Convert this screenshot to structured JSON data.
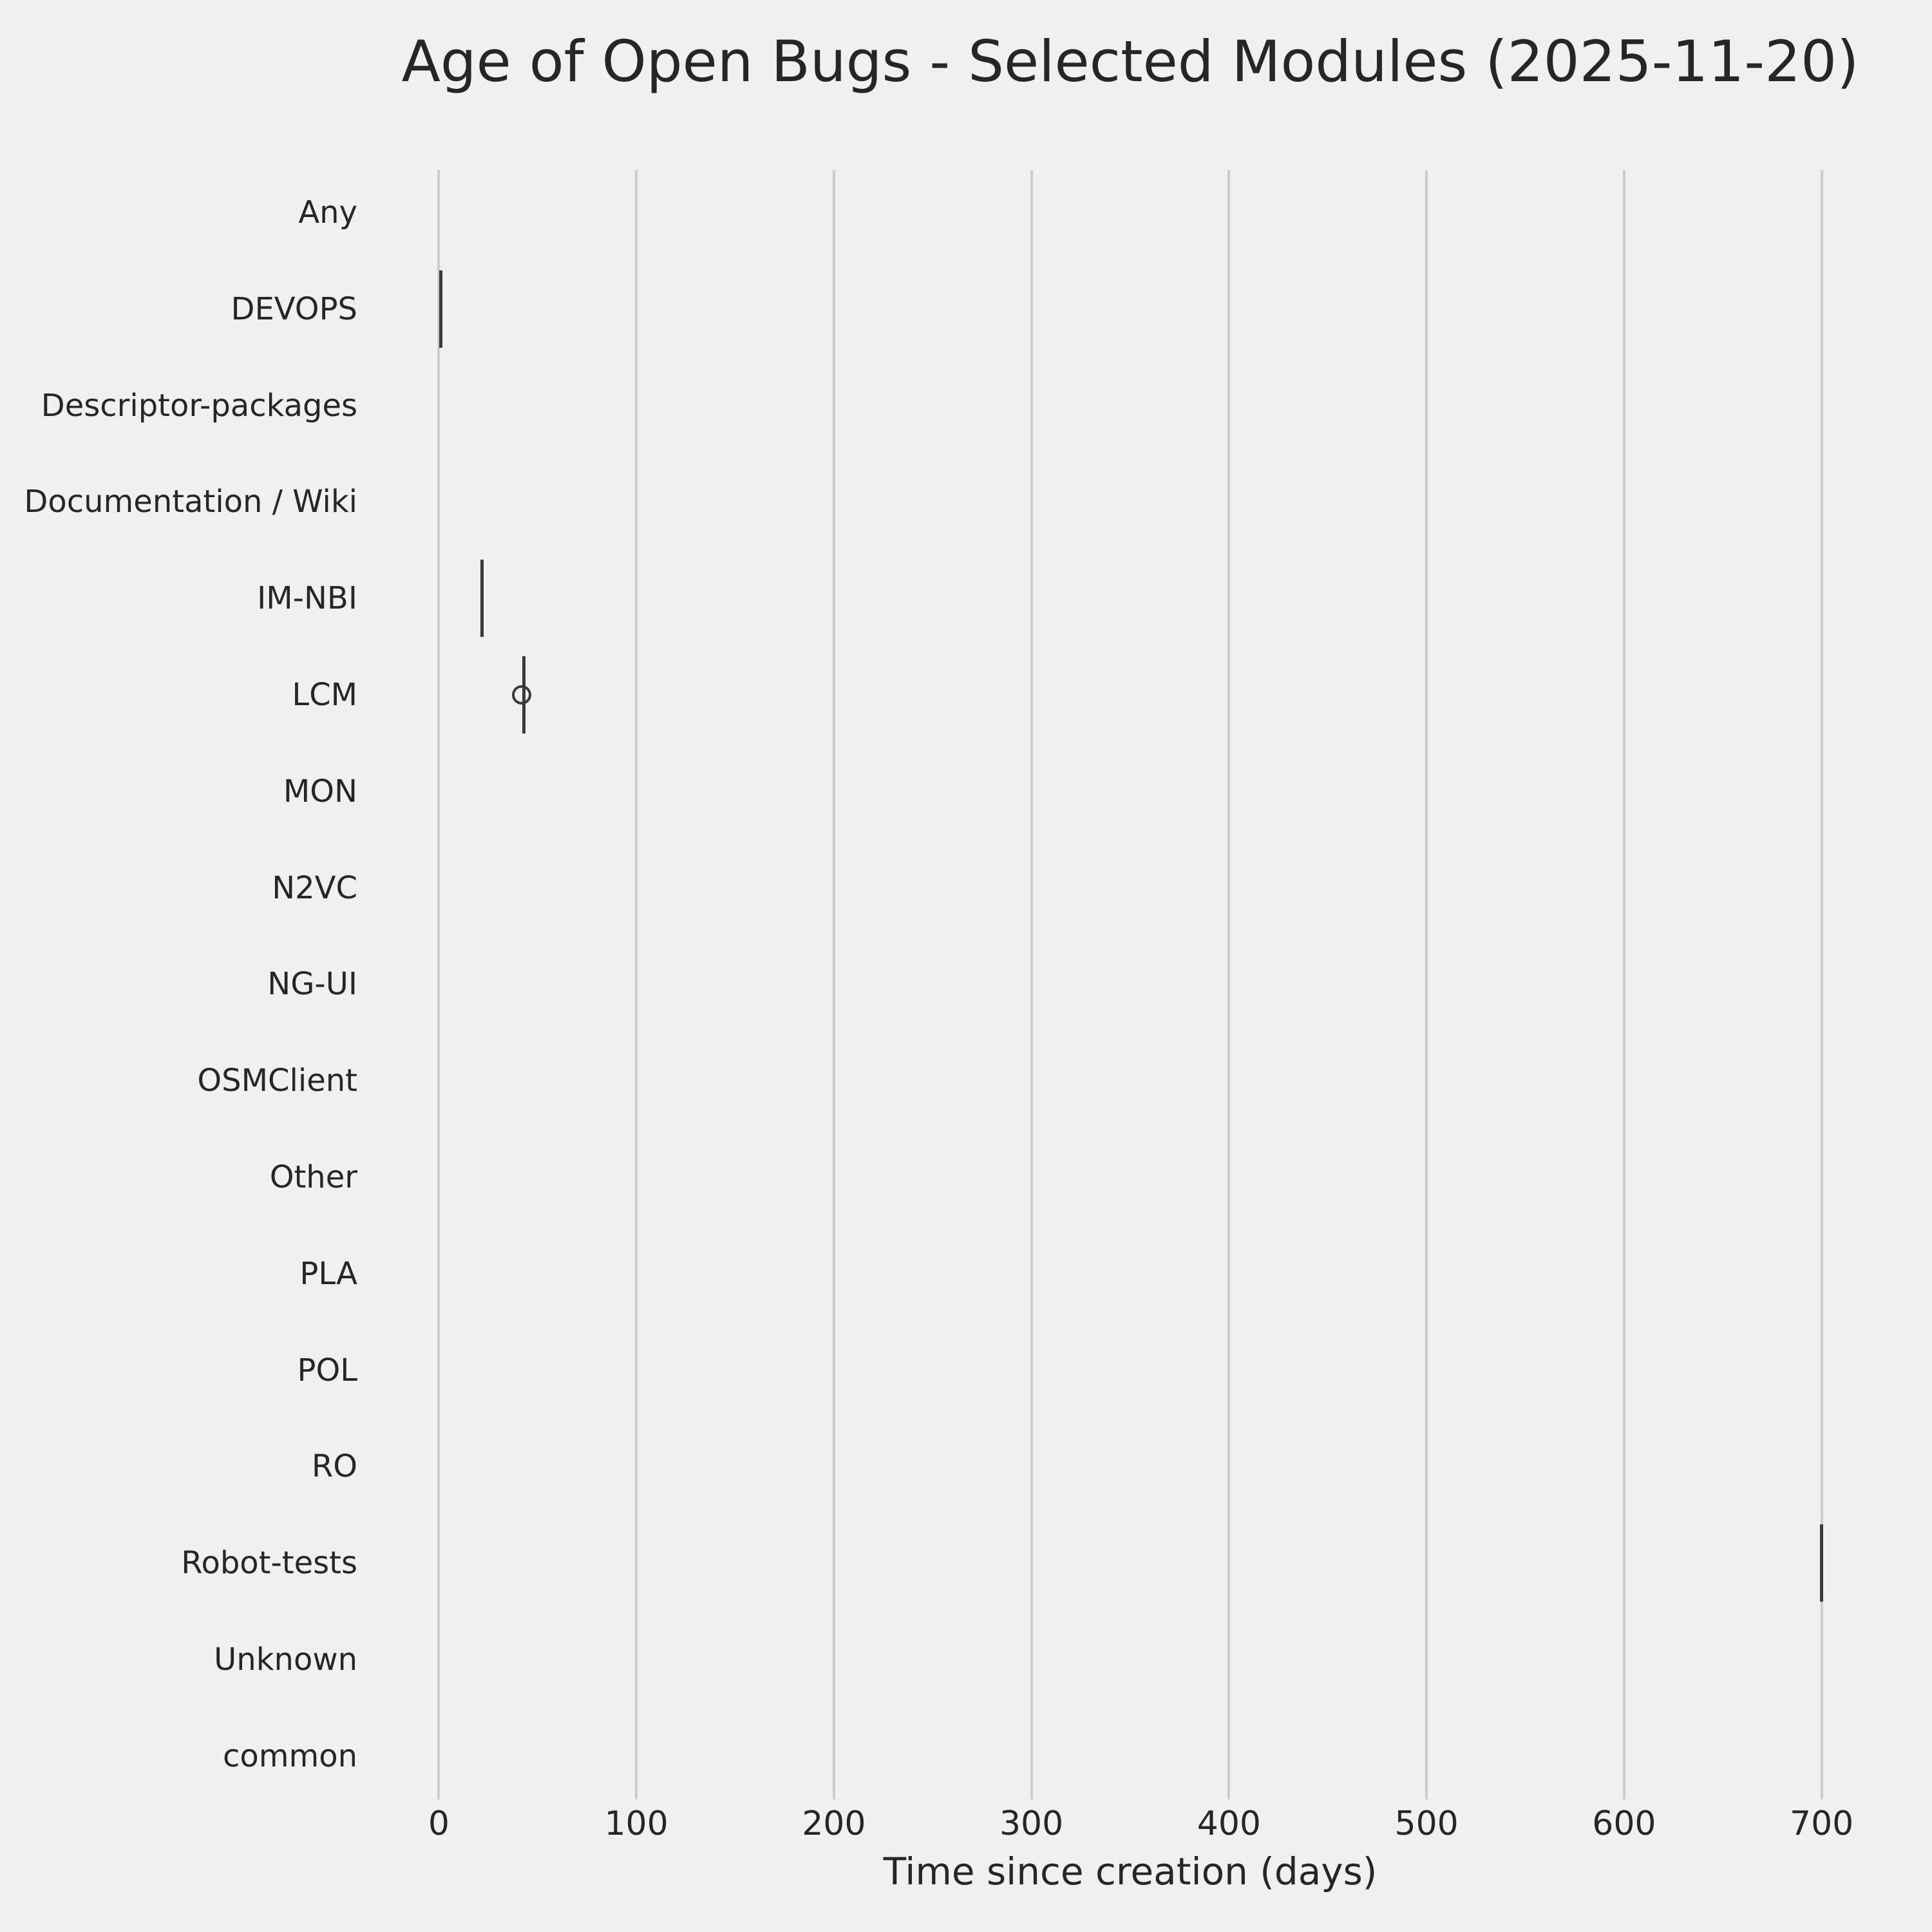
{
  "chart_data": {
    "type": "boxplot",
    "orientation": "horizontal",
    "title": "Age of Open Bugs - Selected Modules (2025-11-20)",
    "xlabel": "Time since creation (days)",
    "x_ticks": [
      0,
      100,
      200,
      300,
      400,
      500,
      600,
      700
    ],
    "xlim": [
      -35,
      735
    ],
    "grid": "vertical-only",
    "legend": "none",
    "categories": [
      "Any",
      "DEVOPS",
      "Descriptor-packages",
      "Documentation / Wiki",
      "IM-NBI",
      "LCM",
      "MON",
      "N2VC",
      "NG-UI",
      "OSMClient",
      "Other",
      "PLA",
      "POL",
      "RO",
      "Robot-tests",
      "Unknown",
      "common"
    ],
    "boxes": [
      {
        "category": "DEVOPS",
        "whisker_low": 1,
        "q1": 1,
        "median": 1,
        "q3": 1,
        "whisker_high": 1,
        "fliers": []
      },
      {
        "category": "IM-NBI",
        "whisker_low": 22,
        "q1": 22,
        "median": 22,
        "q3": 22,
        "whisker_high": 22,
        "fliers": []
      },
      {
        "category": "LCM",
        "whisker_low": 43,
        "q1": 43,
        "median": 43,
        "q3": 43,
        "whisker_high": 43,
        "fliers": [
          42
        ]
      },
      {
        "category": "Robot-tests",
        "whisker_low": 700,
        "q1": 700,
        "median": 700,
        "q3": 700,
        "whisker_high": 700,
        "fliers": []
      }
    ],
    "colors": {
      "background": "#f0f0f0",
      "grid": "#cccccc",
      "box_line": "#3a3a3a",
      "text": "#262626"
    }
  }
}
